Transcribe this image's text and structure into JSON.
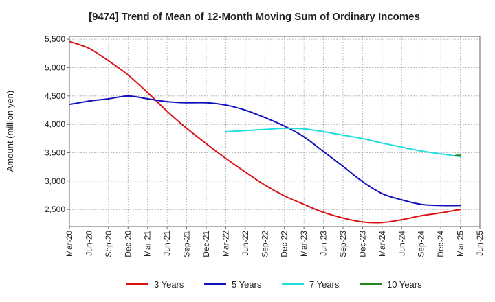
{
  "chart_data": {
    "type": "line",
    "title": "[9474]  Trend of Mean of 12-Month Moving Sum of Ordinary Incomes",
    "xlabel": "",
    "ylabel": "Amount (million yen)",
    "ylim": [
      2200,
      5550
    ],
    "y_ticks": [
      2500,
      3000,
      3500,
      4000,
      4500,
      5000,
      5500
    ],
    "y_tick_labels": [
      "2,500",
      "3,000",
      "3,500",
      "4,000",
      "4,500",
      "5,000",
      "5,500"
    ],
    "x_tick_labels": [
      "Mar-20",
      "Jun-20",
      "Sep-20",
      "Dec-20",
      "Mar-21",
      "Jun-21",
      "Sep-21",
      "Dec-21",
      "Mar-22",
      "Jun-22",
      "Sep-22",
      "Dec-22",
      "Mar-23",
      "Jun-23",
      "Sep-23",
      "Dec-23",
      "Mar-24",
      "Jun-24",
      "Sep-24",
      "Dec-24",
      "Mar-25",
      "Jun-25"
    ],
    "grid": true,
    "legend_position": "bottom",
    "series": [
      {
        "name": "3 Years",
        "color": "#dd1111",
        "points": [
          [
            0,
            5460
          ],
          [
            1,
            5340
          ],
          [
            2,
            5120
          ],
          [
            3,
            4870
          ],
          [
            4,
            4560
          ],
          [
            5,
            4230
          ],
          [
            6,
            3930
          ],
          [
            7,
            3660
          ],
          [
            8,
            3400
          ],
          [
            9,
            3160
          ],
          [
            10,
            2930
          ],
          [
            11,
            2740
          ],
          [
            12,
            2590
          ],
          [
            13,
            2450
          ],
          [
            14,
            2350
          ],
          [
            15,
            2280
          ],
          [
            16,
            2270
          ],
          [
            17,
            2320
          ],
          [
            18,
            2390
          ],
          [
            19,
            2440
          ],
          [
            20,
            2500
          ]
        ]
      },
      {
        "name": "5 Years",
        "color": "#1111bb",
        "points": [
          [
            0,
            4350
          ],
          [
            1,
            4410
          ],
          [
            2,
            4450
          ],
          [
            3,
            4500
          ],
          [
            4,
            4450
          ],
          [
            5,
            4400
          ],
          [
            6,
            4380
          ],
          [
            7,
            4380
          ],
          [
            8,
            4340
          ],
          [
            9,
            4250
          ],
          [
            10,
            4120
          ],
          [
            11,
            3970
          ],
          [
            12,
            3780
          ],
          [
            13,
            3520
          ],
          [
            14,
            3260
          ],
          [
            15,
            2990
          ],
          [
            16,
            2780
          ],
          [
            17,
            2670
          ],
          [
            18,
            2590
          ],
          [
            19,
            2570
          ],
          [
            20,
            2570
          ]
        ]
      },
      {
        "name": "7 Years",
        "color": "#22dddd",
        "points": [
          [
            8,
            3870
          ],
          [
            9,
            3890
          ],
          [
            10,
            3910
          ],
          [
            11,
            3930
          ],
          [
            12,
            3920
          ],
          [
            13,
            3870
          ],
          [
            14,
            3810
          ],
          [
            15,
            3750
          ],
          [
            16,
            3670
          ],
          [
            17,
            3600
          ],
          [
            18,
            3530
          ],
          [
            19,
            3480
          ],
          [
            20,
            3430
          ]
        ]
      },
      {
        "name": "10 Years",
        "color": "#228822",
        "points": [
          [
            19.75,
            3450
          ],
          [
            20,
            3460
          ]
        ]
      }
    ]
  }
}
